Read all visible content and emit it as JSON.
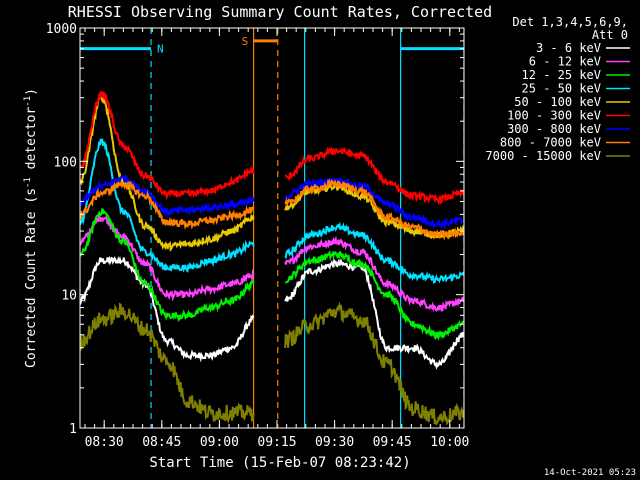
{
  "chart_data": {
    "type": "line",
    "title": "RHESSI Observing Summary Count Rates, Corrected",
    "xlabel": "Start Time (15-Feb-07 08:23:42)",
    "ylabel_main": "Corrected Count Rate (s",
    "ylabel_sup1": "-1",
    "ylabel_mid": " detector",
    "ylabel_sup2": "-1",
    "ylabel_end": ")",
    "y_scale": "log",
    "ylim": [
      1,
      1000
    ],
    "xlim_minutes": [
      0,
      100
    ],
    "x_ticks": [
      {
        "label": "08:30",
        "minute": 6.3
      },
      {
        "label": "08:45",
        "minute": 21.3
      },
      {
        "label": "09:00",
        "minute": 36.3
      },
      {
        "label": "09:15",
        "minute": 51.3
      },
      {
        "label": "09:30",
        "minute": 66.3
      },
      {
        "label": "09:45",
        "minute": 81.3
      },
      {
        "label": "10:00",
        "minute": 96.3
      }
    ],
    "y_ticks": [
      {
        "label": "1",
        "value": 1
      },
      {
        "label": "10",
        "value": 10
      },
      {
        "label": "100",
        "value": 100
      },
      {
        "label": "1000",
        "value": 1000
      }
    ],
    "legend_header": [
      "Det 1,3,4,5,6,9,",
      "Att 0"
    ],
    "legend_position": "right",
    "segments": [
      [
        0,
        45.2
      ],
      [
        53.4,
        100
      ]
    ],
    "series": [
      {
        "name": "3 - 6 keV",
        "color": "#ffffff",
        "a": [
          9,
          18,
          18,
          12,
          4.5,
          3.5,
          3.5,
          4,
          6.5
        ],
        "b": [
          9,
          15,
          17,
          16,
          4,
          4,
          3,
          5
        ]
      },
      {
        "name": "6 - 12 keV",
        "color": "#ff40ff",
        "a": [
          25,
          38,
          27,
          17,
          10,
          10,
          11,
          12,
          14
        ],
        "b": [
          17,
          23,
          25,
          21,
          12,
          9,
          8,
          9
        ]
      },
      {
        "name": "12 - 25 keV",
        "color": "#00ee00",
        "a": [
          20,
          42,
          25,
          12,
          7,
          7,
          8,
          9,
          12
        ],
        "b": [
          13,
          18,
          20,
          17,
          10,
          6,
          5,
          6
        ]
      },
      {
        "name": "25 - 50 keV",
        "color": "#00e0ff",
        "a": [
          35,
          140,
          42,
          21,
          16,
          16,
          18,
          20,
          24
        ],
        "b": [
          20,
          28,
          32,
          28,
          18,
          14,
          13,
          14
        ]
      },
      {
        "name": "50 - 100 keV",
        "color": "#e8c800",
        "a": [
          70,
          300,
          70,
          33,
          23,
          24,
          26,
          30,
          38
        ],
        "b": [
          45,
          60,
          65,
          55,
          35,
          30,
          28,
          30
        ]
      },
      {
        "name": "100 - 300 keV",
        "color": "#ff0000",
        "a": [
          90,
          320,
          130,
          78,
          57,
          57,
          60,
          70,
          85
        ],
        "b": [
          75,
          105,
          120,
          110,
          70,
          55,
          52,
          58
        ]
      },
      {
        "name": "300 - 800 keV",
        "color": "#0000ff",
        "a": [
          50,
          65,
          75,
          60,
          42,
          43,
          45,
          47,
          50
        ],
        "b": [
          55,
          68,
          72,
          65,
          48,
          38,
          34,
          36
        ]
      },
      {
        "name": "800 - 7000 keV",
        "color": "#ff8000",
        "a": [
          40,
          58,
          68,
          55,
          35,
          34,
          36,
          39,
          43
        ],
        "b": [
          48,
          62,
          68,
          60,
          38,
          32,
          28,
          29
        ]
      },
      {
        "name": "7000 - 15000 keV",
        "color": "#808000",
        "a": [
          4.5,
          6.5,
          7.5,
          5.5,
          3.2,
          1.6,
          1.3,
          1.3,
          1.3
        ],
        "b": [
          4.5,
          6.0,
          7.5,
          6.5,
          3.0,
          1.4,
          1.2,
          1.3
        ]
      }
    ],
    "annotations": [
      {
        "label": "N",
        "color": "#00e0ff",
        "start_minute": 0,
        "end_minute": 18.5,
        "level": 700
      },
      {
        "label": "S",
        "color": "#ff8000",
        "start_minute": 45.2,
        "end_minute": 51.5,
        "level": 800
      },
      {
        "label": "",
        "color": "#00e0ff",
        "start_minute": 83.5,
        "end_minute": 100,
        "level": 700
      }
    ],
    "vlines": [
      {
        "minute": 18.5,
        "color": "#00e0ff",
        "style": "dashed"
      },
      {
        "minute": 45.2,
        "color": "#ff8000",
        "style": "solid"
      },
      {
        "minute": 51.5,
        "color": "#ff8000",
        "style": "dashed"
      },
      {
        "minute": 58.5,
        "color": "#00e0ff",
        "style": "solid"
      },
      {
        "minute": 83.5,
        "color": "#00e0ff",
        "style": "solid"
      },
      {
        "minute": 100,
        "color": "#00e0ff",
        "style": "dashed"
      }
    ]
  },
  "footer": {
    "timestamp": "14-Oct-2021 05:23"
  }
}
